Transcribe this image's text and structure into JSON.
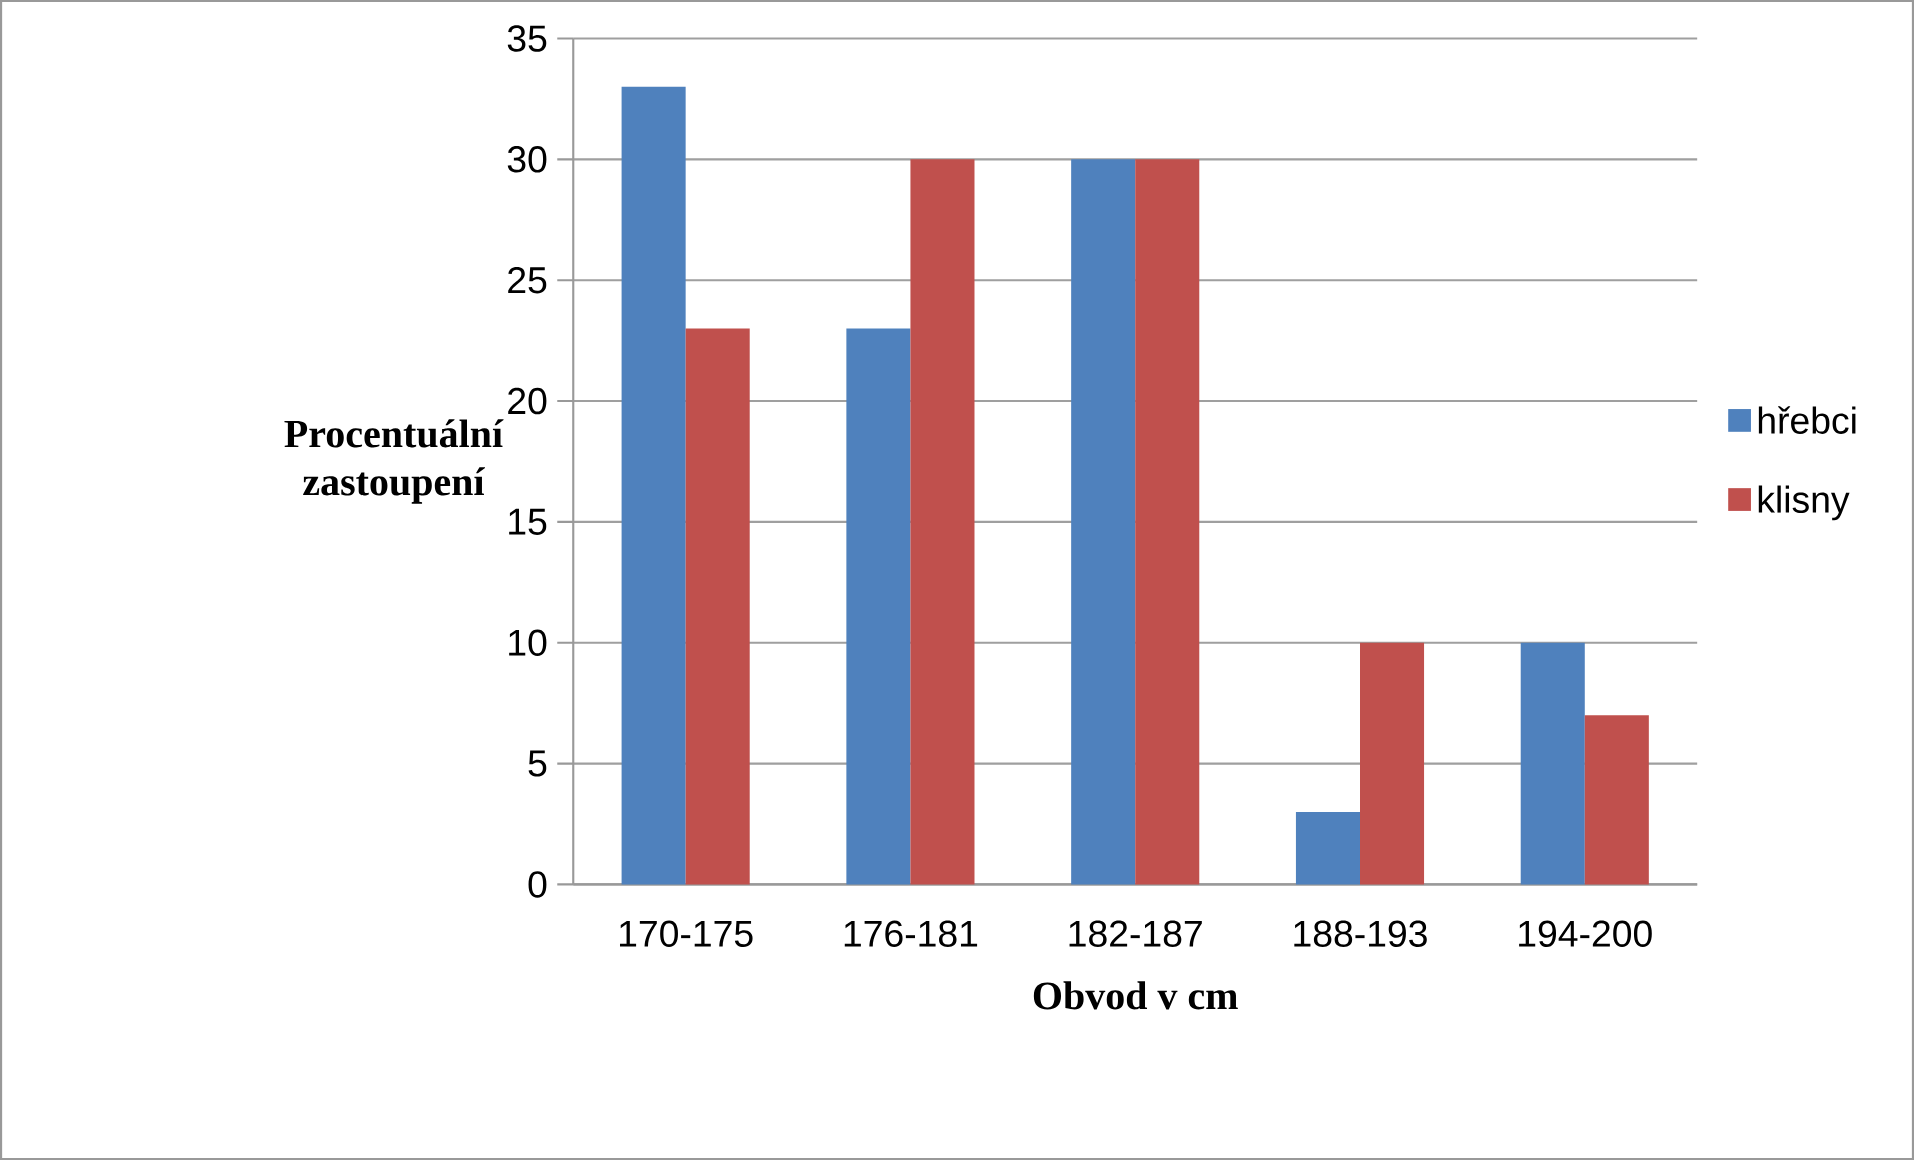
{
  "chart_data": {
    "type": "bar",
    "categories": [
      "170-175",
      "176-181",
      "182-187",
      "188-193",
      "194-200"
    ],
    "series": [
      {
        "name": "hřebci",
        "color": "#4f81bd",
        "values": [
          33,
          23,
          30,
          3,
          10
        ]
      },
      {
        "name": "klisny",
        "color": "#c0504d",
        "values": [
          23,
          30,
          30,
          10,
          7
        ]
      }
    ],
    "xlabel": "Obvod v cm",
    "ylabel": "Procentuální zastoupení",
    "ylim": [
      0,
      35
    ],
    "yticks": [
      0,
      5,
      10,
      15,
      20,
      25,
      30,
      35
    ],
    "grid": "y",
    "legend": "right"
  }
}
